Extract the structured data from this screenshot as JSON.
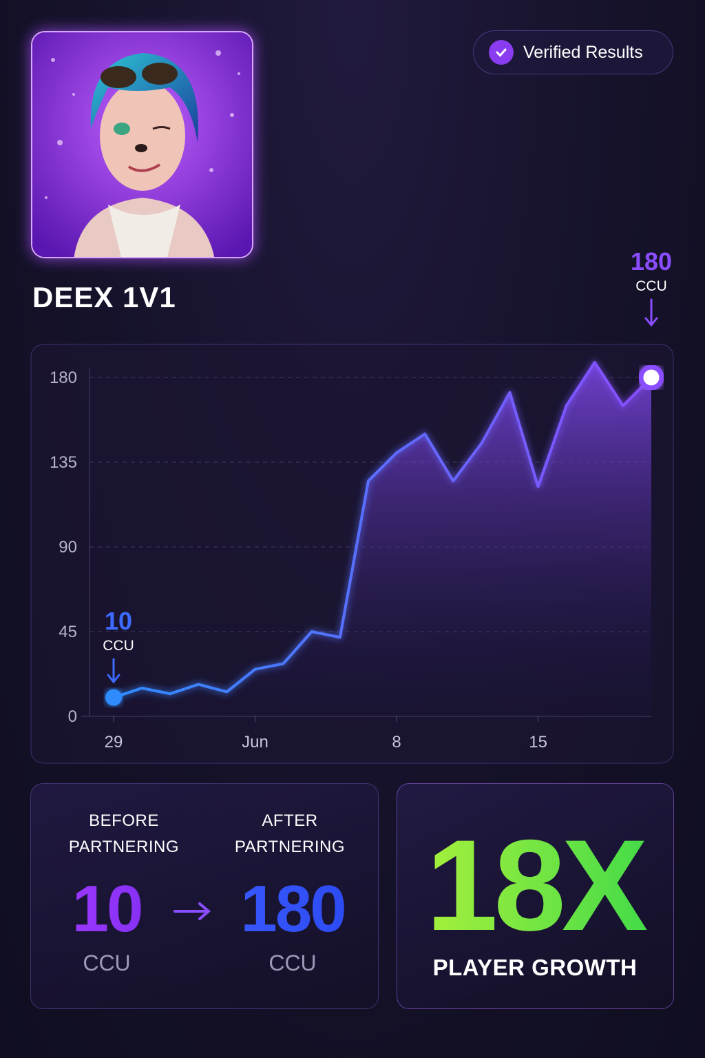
{
  "header": {
    "title": "DEEX 1V1",
    "badge": "Verified Results"
  },
  "chart_data": {
    "type": "line",
    "categories": [
      "29",
      null,
      null,
      null,
      null,
      "Jun",
      null,
      null,
      null,
      null,
      "8",
      null,
      null,
      null,
      null,
      "15",
      null,
      null,
      null,
      null
    ],
    "values": [
      10,
      15,
      12,
      17,
      13,
      25,
      28,
      45,
      42,
      125,
      140,
      150,
      125,
      145,
      172,
      122,
      165,
      188,
      165,
      180
    ],
    "value_labels": [
      "10",
      null,
      null,
      null,
      null,
      null,
      null,
      null,
      null,
      null,
      null,
      null,
      null,
      null,
      null,
      null,
      null,
      null,
      null,
      "180"
    ],
    "value_unit": "CCU",
    "color": "#8a4dff",
    "start_color": "#2f8cff",
    "ylim": [
      0,
      195
    ],
    "yticks": [
      0,
      45,
      90,
      135,
      180
    ],
    "grid": true
  },
  "stats": {
    "before": {
      "label": "BEFORE PARTNERING",
      "value": "10",
      "unit": "CCU"
    },
    "after": {
      "label": "AFTER PARTNERING",
      "value": "180",
      "unit": "CCU"
    },
    "growth": {
      "value": "18X",
      "label": "PLAYER GROWTH"
    }
  }
}
